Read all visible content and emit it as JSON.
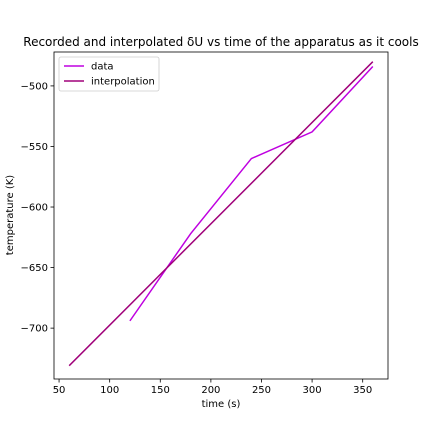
{
  "chart_data": {
    "type": "line",
    "title": "Recorded and interpolated δU vs time of the apparatus as it cools",
    "xlabel": "time (s)",
    "ylabel": "temperature (K)",
    "xlim": [
      45,
      375
    ],
    "ylim": [
      -742,
      -472
    ],
    "xticks": [
      50,
      100,
      150,
      200,
      250,
      300,
      350
    ],
    "yticks": [
      -700,
      -650,
      -600,
      -550,
      -500
    ],
    "grid": false,
    "legend": {
      "placement": "top-left"
    },
    "series": [
      {
        "name": "data",
        "color": "#bf00e0",
        "x": [
          120,
          180,
          240,
          300,
          360
        ],
        "y": [
          -694,
          -622,
          -560,
          -538,
          -484
        ]
      },
      {
        "name": "interpolation",
        "color": "#a0007a",
        "x": [
          60,
          360
        ],
        "y": [
          -731,
          -480
        ]
      }
    ]
  }
}
